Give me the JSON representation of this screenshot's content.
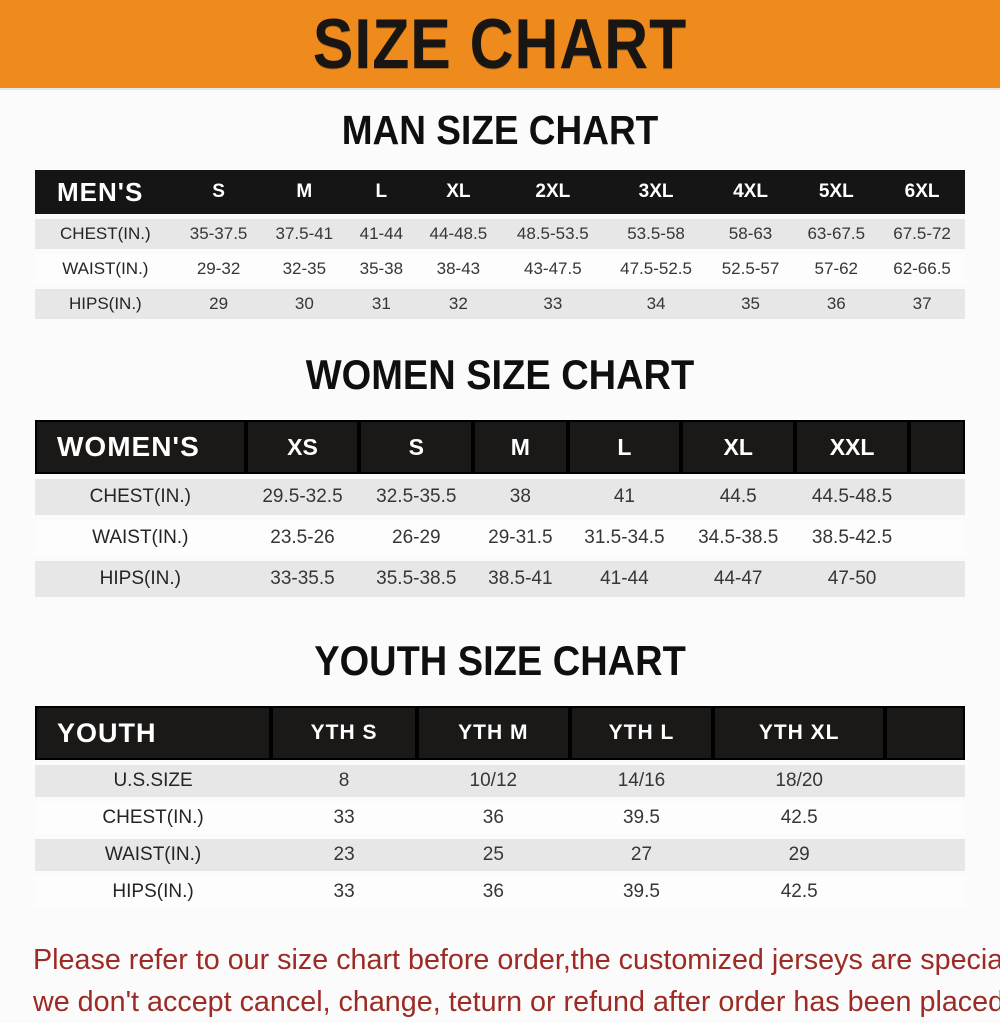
{
  "banner": {
    "title": "SIZE CHART",
    "bg_color": "#ef8b1d"
  },
  "chart_data": [
    {
      "type": "table",
      "title": "MAN SIZE CHART",
      "corner_label": "MEN'S",
      "columns": [
        "S",
        "M",
        "L",
        "XL",
        "2XL",
        "3XL",
        "4XL",
        "5XL",
        "6XL"
      ],
      "rows": [
        {
          "label": "CHEST(IN.)",
          "values": [
            "35-37.5",
            "37.5-41",
            "41-44",
            "44-48.5",
            "48.5-53.5",
            "53.5-58",
            "58-63",
            "63-67.5",
            "67.5-72"
          ]
        },
        {
          "label": "WAIST(IN.)",
          "values": [
            "29-32",
            "32-35",
            "35-38",
            "38-43",
            "43-47.5",
            "47.5-52.5",
            "52.5-57",
            "57-62",
            "62-66.5"
          ]
        },
        {
          "label": "HIPS(IN.)",
          "values": [
            "29",
            "30",
            "31",
            "32",
            "33",
            "34",
            "35",
            "36",
            "37"
          ]
        }
      ]
    },
    {
      "type": "table",
      "title": "WOMEN SIZE CHART",
      "corner_label": "WOMEN'S",
      "columns": [
        "XS",
        "S",
        "M",
        "L",
        "XL",
        "XXL"
      ],
      "rows": [
        {
          "label": "CHEST(IN.)",
          "values": [
            "29.5-32.5",
            "32.5-35.5",
            "38",
            "41",
            "44.5",
            "44.5-48.5"
          ]
        },
        {
          "label": "WAIST(IN.)",
          "values": [
            "23.5-26",
            "26-29",
            "29-31.5",
            "31.5-34.5",
            "34.5-38.5",
            "38.5-42.5"
          ]
        },
        {
          "label": "HIPS(IN.)",
          "values": [
            "33-35.5",
            "35.5-38.5",
            "38.5-41",
            "41-44",
            "44-47",
            "47-50"
          ]
        }
      ]
    },
    {
      "type": "table",
      "title": "YOUTH SIZE CHART",
      "corner_label": "YOUTH",
      "columns": [
        "YTH S",
        "YTH M",
        "YTH L",
        "YTH XL"
      ],
      "rows": [
        {
          "label": "U.S.SIZE",
          "values": [
            "8",
            "10/12",
            "14/16",
            "18/20"
          ]
        },
        {
          "label": "CHEST(IN.)",
          "values": [
            "33",
            "36",
            "39.5",
            "42.5"
          ]
        },
        {
          "label": "WAIST(IN.)",
          "values": [
            "23",
            "25",
            "27",
            "29"
          ]
        },
        {
          "label": "HIPS(IN.)",
          "values": [
            "33",
            "36",
            "39.5",
            "42.5"
          ]
        }
      ]
    }
  ],
  "footer": {
    "line1": "Please refer to our size chart before order,the customized jerseys are special products,",
    "line2": "we don't accept cancel, change, teturn or refund after order has been placed!",
    "text_color": "#9c2b25"
  }
}
